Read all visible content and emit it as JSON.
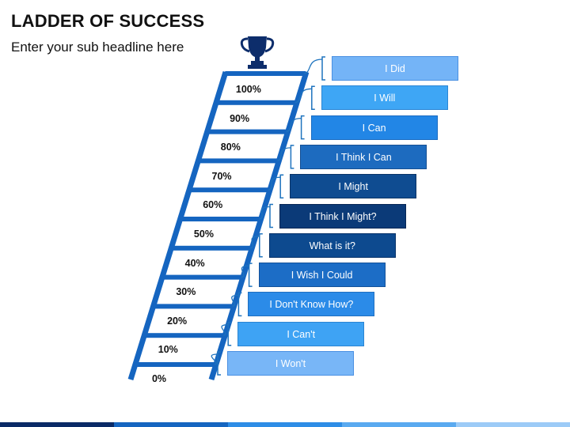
{
  "header": {
    "title": "LADDER OF SUCCESS",
    "subtitle": "Enter your sub headline here"
  },
  "trophy": {
    "icon": "trophy-icon",
    "color": "#0d2d6b"
  },
  "percentages": [
    "100%",
    "90%",
    "80%",
    "70%",
    "60%",
    "50%",
    "40%",
    "30%",
    "20%",
    "10%",
    "0%"
  ],
  "steps": [
    {
      "label": "I Did",
      "fill": "#74b4f7",
      "border": "#4a90e2"
    },
    {
      "label": "I Will",
      "fill": "#3ea6f5",
      "border": "#2b86d4"
    },
    {
      "label": "I Can",
      "fill": "#2286e6",
      "border": "#1b6cc2"
    },
    {
      "label": "I Think I Can",
      "fill": "#1d6bbf",
      "border": "#154f93"
    },
    {
      "label": "I Might",
      "fill": "#0f4c91",
      "border": "#0a3466"
    },
    {
      "label": "I Think I Might?",
      "fill": "#0b3a78",
      "border": "#072755"
    },
    {
      "label": "What is it?",
      "fill": "#0d4a8f",
      "border": "#08336a"
    },
    {
      "label": "I Wish I Could",
      "fill": "#1c6dc6",
      "border": "#14529a"
    },
    {
      "label": "I Don't Know How?",
      "fill": "#2b8be8",
      "border": "#1f6fc0"
    },
    {
      "label": "I Can't",
      "fill": "#3ea3f4",
      "border": "#2b85d2"
    },
    {
      "label": "I Won't",
      "fill": "#78b6f7",
      "border": "#4a90e2"
    }
  ],
  "colors": {
    "ladder": "#1565c0",
    "connector": "#1e73be",
    "bottom_bar": [
      "#0a2a66",
      "#1565c0",
      "#2e8de6",
      "#5aaaf0",
      "#9ccbf7"
    ]
  }
}
